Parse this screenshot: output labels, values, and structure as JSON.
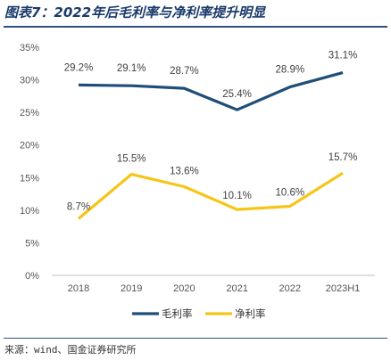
{
  "header": {
    "title": "图表7：2022年后毛利率与净利率提升明显"
  },
  "footer": {
    "source": "来源：wind、国金证券研究所"
  },
  "chart_data": {
    "type": "line",
    "categories": [
      "2018",
      "2019",
      "2020",
      "2021",
      "2022",
      "2023H1"
    ],
    "series": [
      {
        "name": "毛利率",
        "values": [
          29.2,
          29.1,
          28.7,
          25.4,
          28.9,
          31.1
        ],
        "color": "#1f4e79"
      },
      {
        "name": "净利率",
        "values": [
          8.7,
          15.5,
          13.6,
          10.1,
          10.6,
          15.7
        ],
        "color": "#f5c518"
      }
    ],
    "data_labels": {
      "毛利率": [
        "29.2%",
        "29.1%",
        "28.7%",
        "25.4%",
        "28.9%",
        "31.1%"
      ],
      "净利率": [
        "8.7%",
        "15.5%",
        "13.6%",
        "10.1%",
        "10.6%",
        "15.7%"
      ]
    },
    "yticks": [
      "0%",
      "5%",
      "10%",
      "15%",
      "20%",
      "25%",
      "30%",
      "35%"
    ],
    "ylim": [
      0,
      35
    ],
    "grid": false,
    "legend_position": "bottom"
  }
}
